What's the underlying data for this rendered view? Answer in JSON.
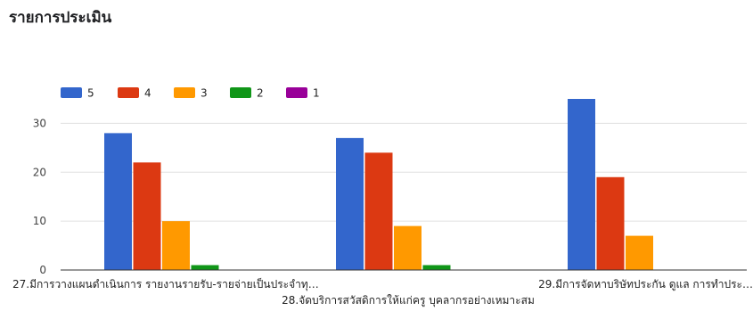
{
  "chart_data": {
    "type": "bar",
    "title": "รายการประเมิน",
    "categories": [
      "27.มีการวางแผนดำเนินการ รายงานรายรับ-รายจ่ายเป็นประจำทุ…",
      "28.จัดบริการสวัสดิการให้แก่ครู บุคลากรอย่างเหมาะสม",
      "29.มีการจัดหาบริษัทประกัน ดูแล การทำประ…"
    ],
    "series": [
      {
        "name": "5",
        "color": "#3366cc",
        "values": [
          28,
          27,
          35
        ]
      },
      {
        "name": "4",
        "color": "#dc3912",
        "values": [
          22,
          24,
          19
        ]
      },
      {
        "name": "3",
        "color": "#ff9900",
        "values": [
          10,
          9,
          7
        ]
      },
      {
        "name": "2",
        "color": "#109618",
        "values": [
          1,
          1,
          0
        ]
      },
      {
        "name": "1",
        "color": "#990099",
        "values": [
          0,
          0,
          0
        ]
      }
    ],
    "ylim": [
      0,
      35
    ],
    "yticks": [
      "0",
      "10",
      "20",
      "30"
    ],
    "grid": true,
    "legend": "top-left"
  }
}
